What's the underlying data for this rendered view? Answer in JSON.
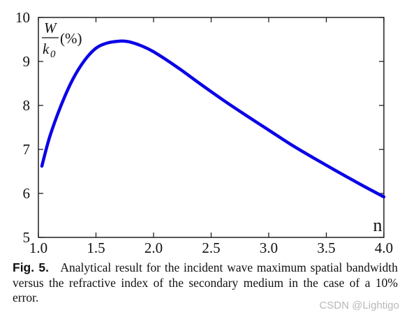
{
  "chart_data": {
    "type": "line",
    "title": "",
    "xlabel": "n",
    "ylabel": {
      "numerator": "W",
      "denominator": "k",
      "subscript": "0",
      "unit": "(%)"
    },
    "xlim": [
      1.0,
      4.0
    ],
    "ylim": [
      5,
      10
    ],
    "xticks": [
      "1.0",
      "1.5",
      "2.0",
      "2.5",
      "3.0",
      "3.5",
      "4.0"
    ],
    "yticks": [
      "5",
      "6",
      "7",
      "8",
      "9",
      "10"
    ],
    "grid": false,
    "series": [
      {
        "color": "#0a00e6",
        "x": [
          1.03,
          1.1,
          1.2,
          1.3,
          1.4,
          1.5,
          1.6,
          1.7,
          1.75,
          1.8,
          1.9,
          2.0,
          2.2,
          2.4,
          2.6,
          2.8,
          3.0,
          3.2,
          3.4,
          3.6,
          3.8,
          4.0
        ],
        "y": [
          6.62,
          7.3,
          8.02,
          8.6,
          9.02,
          9.3,
          9.42,
          9.46,
          9.46,
          9.44,
          9.35,
          9.22,
          8.88,
          8.5,
          8.13,
          7.78,
          7.44,
          7.1,
          6.79,
          6.49,
          6.2,
          5.92
        ]
      }
    ]
  },
  "caption": {
    "label": "Fig. 5.",
    "text": "Analytical result for the incident wave maximum spatial bandwidth versus the refractive index of the secondary medium in the case of a 10% error."
  },
  "watermark": "CSDN @Lightigo"
}
